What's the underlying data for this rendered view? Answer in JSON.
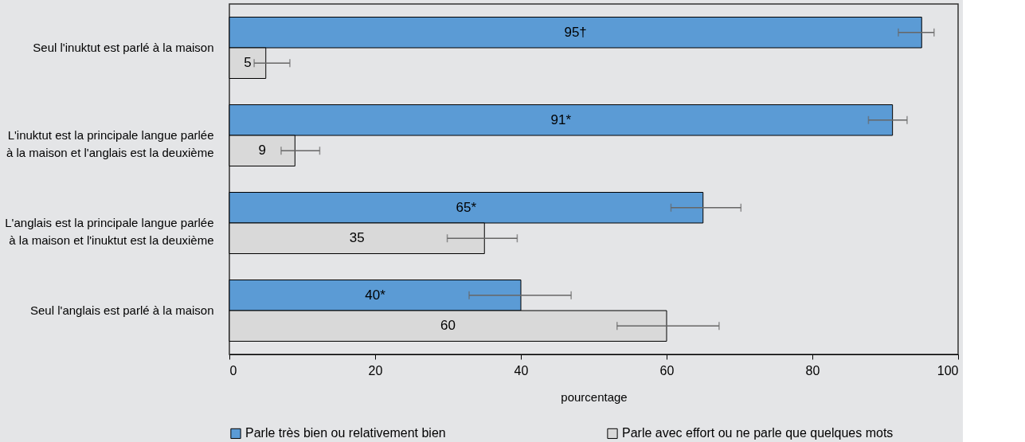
{
  "chart_data": {
    "type": "bar",
    "orientation": "horizontal",
    "xlabel": "pourcentage",
    "categories": [
      "Seul l'inuktut est parlé à la maison",
      "L'inuktut est la principale langue parlée\nà la maison et l'anglais est la deuxième",
      "L'anglais est la principale langue parlée\nà la maison et l'inuktut est la deuxième",
      "Seul l'anglais est parlé à la maison"
    ],
    "series": [
      {
        "name": "Parle très bien ou relativement bien",
        "color": "#5b9bd5",
        "values": [
          95,
          91,
          65,
          40
        ],
        "value_labels": [
          "95†",
          "91*",
          "65*",
          "40*"
        ],
        "errors": [
          [
            91.8,
            96.7
          ],
          [
            87.7,
            93.0
          ],
          [
            60.6,
            70.2
          ],
          [
            32.9,
            46.9
          ]
        ]
      },
      {
        "name": "Parle avec effort ou ne parle que quelques mots",
        "color": "#d9d9d9",
        "values": [
          5,
          9,
          35,
          60
        ],
        "value_labels": [
          "5",
          "9",
          "35",
          "60"
        ],
        "errors": [
          [
            3.4,
            8.3
          ],
          [
            7.1,
            12.4
          ],
          [
            29.9,
            39.5
          ],
          [
            53.2,
            67.2
          ]
        ]
      }
    ],
    "xlim": [
      0,
      100
    ],
    "xticks": [
      0,
      20,
      40,
      60,
      80,
      100
    ],
    "grid": false,
    "legend": "bottom"
  }
}
